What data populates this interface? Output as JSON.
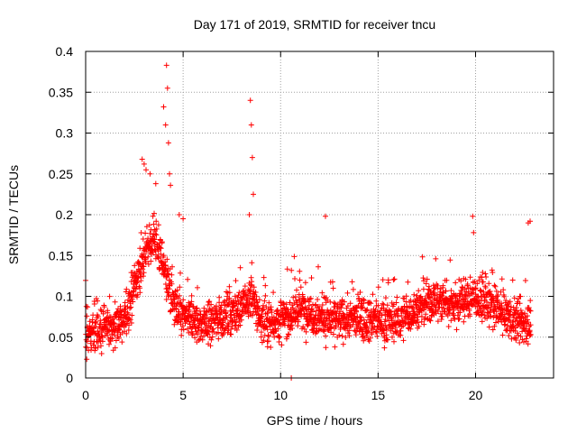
{
  "colors": {
    "data": "#ff0000",
    "grid": "#a0a0a0",
    "axis": "#000000",
    "background": "#ffffff"
  },
  "chart_data": {
    "type": "scatter",
    "title": "Day 171 of 2019, SRMTID for receiver tncu",
    "xlabel": "GPS time / hours",
    "ylabel": "SRMTID / TECUs",
    "xlim": [
      0,
      24
    ],
    "ylim": [
      0,
      0.4
    ],
    "grid": true,
    "marker": "plus",
    "x_ticks": [
      0,
      5,
      10,
      15,
      20
    ],
    "x_tick_labels": [
      "0",
      "5",
      "10",
      "15",
      "20"
    ],
    "y_ticks": [
      0,
      0.05,
      0.1,
      0.15,
      0.2,
      0.25,
      0.3,
      0.35,
      0.4
    ],
    "y_tick_labels": [
      "0",
      "0.05",
      "0.1",
      "0.15",
      "0.2",
      "0.25",
      "0.3",
      "0.35",
      "0.4"
    ],
    "series": [
      {
        "name": "SRMTID",
        "baseline_profile": [
          [
            0.0,
            0.045
          ],
          [
            0.5,
            0.055
          ],
          [
            1.0,
            0.06
          ],
          [
            1.5,
            0.065
          ],
          [
            2.0,
            0.07
          ],
          [
            2.5,
            0.11
          ],
          [
            3.0,
            0.15
          ],
          [
            3.5,
            0.17
          ],
          [
            4.0,
            0.14
          ],
          [
            4.5,
            0.09
          ],
          [
            5.0,
            0.075
          ],
          [
            5.5,
            0.07
          ],
          [
            6.0,
            0.065
          ],
          [
            7.0,
            0.075
          ],
          [
            8.0,
            0.085
          ],
          [
            8.5,
            0.1
          ],
          [
            9.0,
            0.07
          ],
          [
            10.0,
            0.07
          ],
          [
            11.0,
            0.085
          ],
          [
            12.0,
            0.075
          ],
          [
            13.0,
            0.07
          ],
          [
            14.0,
            0.075
          ],
          [
            15.0,
            0.07
          ],
          [
            16.0,
            0.07
          ],
          [
            17.0,
            0.085
          ],
          [
            18.0,
            0.095
          ],
          [
            19.0,
            0.09
          ],
          [
            20.0,
            0.1
          ],
          [
            21.0,
            0.085
          ],
          [
            22.0,
            0.07
          ],
          [
            22.8,
            0.065
          ]
        ],
        "x_range": [
          0.0,
          22.85
        ],
        "point_count": 2400,
        "spread": 0.025,
        "spikes": [
          [
            2.9,
            0.268
          ],
          [
            3.0,
            0.262
          ],
          [
            3.1,
            0.255
          ],
          [
            3.3,
            0.25
          ],
          [
            3.6,
            0.238
          ],
          [
            4.0,
            0.332
          ],
          [
            4.1,
            0.31
          ],
          [
            4.15,
            0.383
          ],
          [
            4.2,
            0.355
          ],
          [
            4.25,
            0.288
          ],
          [
            4.3,
            0.25
          ],
          [
            4.35,
            0.236
          ],
          [
            4.8,
            0.2
          ],
          [
            5.0,
            0.195
          ],
          [
            8.45,
            0.34
          ],
          [
            8.5,
            0.31
          ],
          [
            8.55,
            0.27
          ],
          [
            8.6,
            0.225
          ],
          [
            8.4,
            0.2
          ],
          [
            12.3,
            0.198
          ],
          [
            19.85,
            0.198
          ],
          [
            19.9,
            0.178
          ],
          [
            22.8,
            0.192
          ],
          [
            22.7,
            0.19
          ]
        ],
        "outliers": [
          [
            10.55,
            0.0
          ]
        ]
      }
    ]
  }
}
